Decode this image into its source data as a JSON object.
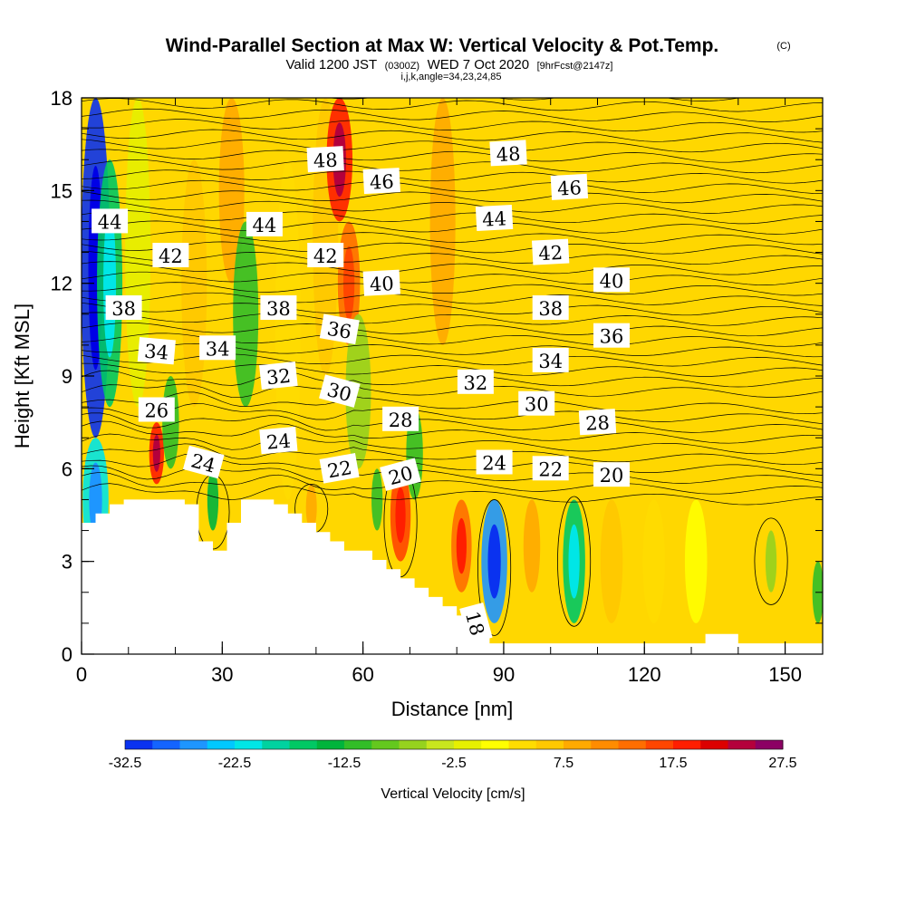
{
  "chart_data": {
    "type": "heatmap",
    "title": "Wind-Parallel Section at Max W: Vertical Velocity & Pot.Temp.",
    "title_mark": "(C)",
    "subtitle_prefix": "Valid 1200 JST",
    "subtitle_utc": "(0300Z)",
    "subtitle_date": "WED 7 Oct 2020",
    "subtitle_fcst": "[9hrFcst@2147z]",
    "subtitle_grid": "i,j,k,angle=34,23,24,85",
    "xlabel": "Distance [nm]",
    "ylabel": "Height [Kft MSL]",
    "xlim": [
      0,
      158
    ],
    "ylim": [
      0,
      18
    ],
    "xticks": [
      "0",
      "30",
      "60",
      "90",
      "120",
      "150"
    ],
    "yticks": [
      "0",
      "3",
      "6",
      "9",
      "12",
      "15",
      "18"
    ],
    "colorbar": {
      "label": "Vertical Velocity [cm/s]",
      "min": -32.5,
      "max": 27.5,
      "step": 2.5,
      "tick_labels": [
        "-32.5",
        "-22.5",
        "-12.5",
        "-2.5",
        "7.5",
        "17.5",
        "27.5"
      ],
      "colors": [
        "#0000e6",
        "#0a32f0",
        "#1464ff",
        "#1e96ff",
        "#00c8ff",
        "#00e6e6",
        "#00d2a0",
        "#00c864",
        "#00b43c",
        "#32be28",
        "#64c81e",
        "#96d21e",
        "#c8e61e",
        "#e6f000",
        "#ffff00",
        "#ffdc00",
        "#ffc800",
        "#ffaa00",
        "#ff8c00",
        "#ff6e00",
        "#ff4600",
        "#ff1e00",
        "#dc0000",
        "#b4003c",
        "#8c0064",
        "#640096"
      ]
    },
    "vertical_velocity_cells": [
      {
        "x": 3,
        "y": [
          7,
          18
        ],
        "w": -30
      },
      {
        "x": 3,
        "y": [
          3,
          7
        ],
        "w": -20
      },
      {
        "x": 6,
        "y": [
          8,
          16
        ],
        "w": -15
      },
      {
        "x": 12,
        "y": [
          8,
          18
        ],
        "w": 2
      },
      {
        "x": 16,
        "y": [
          5.5,
          7.5
        ],
        "w": 22
      },
      {
        "x": 19,
        "y": [
          6,
          9
        ],
        "w": -8
      },
      {
        "x": 24,
        "y": [
          8,
          16
        ],
        "w": 8
      },
      {
        "x": 28,
        "y": [
          4,
          6
        ],
        "w": -12
      },
      {
        "x": 32,
        "y": [
          12,
          18
        ],
        "w": 10
      },
      {
        "x": 35,
        "y": [
          8,
          14
        ],
        "w": -10
      },
      {
        "x": 44,
        "y": [
          5,
          16
        ],
        "w": 5
      },
      {
        "x": 49,
        "y": [
          4,
          5.5
        ],
        "w": 12
      },
      {
        "x": 52,
        "y": [
          9,
          18
        ],
        "w": 8
      },
      {
        "x": 55,
        "y": [
          14,
          18
        ],
        "w": 22
      },
      {
        "x": 57,
        "y": [
          10,
          14
        ],
        "w": 15
      },
      {
        "x": 59,
        "y": [
          6,
          11
        ],
        "w": -5
      },
      {
        "x": 63,
        "y": [
          4,
          6
        ],
        "w": -10
      },
      {
        "x": 68,
        "y": [
          3,
          6
        ],
        "w": 18
      },
      {
        "x": 71,
        "y": [
          5,
          8
        ],
        "w": -8
      },
      {
        "x": 77,
        "y": [
          10,
          18
        ],
        "w": 10
      },
      {
        "x": 81,
        "y": [
          2,
          5
        ],
        "w": 17
      },
      {
        "x": 88,
        "y": [
          1,
          5
        ],
        "w": -25
      },
      {
        "x": 96,
        "y": [
          2,
          5
        ],
        "w": 12
      },
      {
        "x": 105,
        "y": [
          1,
          5
        ],
        "w": -15
      },
      {
        "x": 113,
        "y": [
          1,
          5
        ],
        "w": 8
      },
      {
        "x": 122,
        "y": [
          1,
          5
        ],
        "w": 6
      },
      {
        "x": 131,
        "y": [
          1,
          5
        ],
        "w": 4
      },
      {
        "x": 147,
        "y": [
          2,
          4
        ],
        "w": -5
      },
      {
        "x": 157,
        "y": [
          1,
          3
        ],
        "w": -10
      }
    ],
    "potential_temperature_labels": [
      {
        "text": "48",
        "x": 52,
        "y": 16.0,
        "angle": -3
      },
      {
        "text": "48",
        "x": 91,
        "y": 16.2,
        "angle": -3
      },
      {
        "text": "46",
        "x": 64,
        "y": 15.3,
        "angle": -3
      },
      {
        "text": "46",
        "x": 104,
        "y": 15.1,
        "angle": -3
      },
      {
        "text": "44",
        "x": 6,
        "y": 14.0,
        "angle": 0
      },
      {
        "text": "44",
        "x": 39,
        "y": 13.9,
        "angle": 0
      },
      {
        "text": "44",
        "x": 88,
        "y": 14.1,
        "angle": -3
      },
      {
        "text": "42",
        "x": 19,
        "y": 12.9,
        "angle": 0
      },
      {
        "text": "42",
        "x": 52,
        "y": 12.9,
        "angle": 0
      },
      {
        "text": "42",
        "x": 100,
        "y": 13.0,
        "angle": -3
      },
      {
        "text": "40",
        "x": 64,
        "y": 12.0,
        "angle": -3
      },
      {
        "text": "40",
        "x": 113,
        "y": 12.1,
        "angle": 0
      },
      {
        "text": "38",
        "x": 9,
        "y": 11.2,
        "angle": 0
      },
      {
        "text": "38",
        "x": 42,
        "y": 11.2,
        "angle": 0
      },
      {
        "text": "38",
        "x": 100,
        "y": 11.2,
        "angle": 0
      },
      {
        "text": "36",
        "x": 55,
        "y": 10.5,
        "angle": 10
      },
      {
        "text": "36",
        "x": 113,
        "y": 10.3,
        "angle": 0
      },
      {
        "text": "34",
        "x": 16,
        "y": 9.8,
        "angle": 5
      },
      {
        "text": "34",
        "x": 29,
        "y": 9.9,
        "angle": 0
      },
      {
        "text": "34",
        "x": 100,
        "y": 9.5,
        "angle": 0
      },
      {
        "text": "32",
        "x": 42,
        "y": 9.0,
        "angle": -6
      },
      {
        "text": "32",
        "x": 84,
        "y": 8.8,
        "angle": 0
      },
      {
        "text": "30",
        "x": 55,
        "y": 8.5,
        "angle": 15
      },
      {
        "text": "30",
        "x": 97,
        "y": 8.1,
        "angle": 0
      },
      {
        "text": "28",
        "x": 68,
        "y": 7.6,
        "angle": 0
      },
      {
        "text": "28",
        "x": 110,
        "y": 7.5,
        "angle": -3
      },
      {
        "text": "26",
        "x": 16,
        "y": 7.9,
        "angle": 0
      },
      {
        "text": "24",
        "x": 26,
        "y": 6.2,
        "angle": 15
      },
      {
        "text": "24",
        "x": 42,
        "y": 6.9,
        "angle": -5
      },
      {
        "text": "24",
        "x": 88,
        "y": 6.2,
        "angle": 0
      },
      {
        "text": "22",
        "x": 55,
        "y": 6.0,
        "angle": -10
      },
      {
        "text": "22",
        "x": 100,
        "y": 6.0,
        "angle": 0
      },
      {
        "text": "20",
        "x": 68,
        "y": 5.8,
        "angle": -15
      },
      {
        "text": "20",
        "x": 113,
        "y": 5.8,
        "angle": 0
      },
      {
        "text": "18",
        "x": 84,
        "y": 1.0,
        "angle": 75
      }
    ],
    "terrain": [
      [
        0,
        4.25
      ],
      [
        3,
        4.25
      ],
      [
        3,
        4.55
      ],
      [
        6,
        4.55
      ],
      [
        6,
        4.85
      ],
      [
        9,
        4.85
      ],
      [
        9,
        5.0
      ],
      [
        22,
        5.0
      ],
      [
        22,
        4.85
      ],
      [
        25,
        4.85
      ],
      [
        25,
        3.65
      ],
      [
        28,
        3.65
      ],
      [
        28,
        3.35
      ],
      [
        31,
        3.35
      ],
      [
        31,
        4.25
      ],
      [
        34,
        4.25
      ],
      [
        34,
        5.0
      ],
      [
        41,
        5.0
      ],
      [
        41,
        4.85
      ],
      [
        44,
        4.85
      ],
      [
        44,
        4.55
      ],
      [
        47,
        4.55
      ],
      [
        47,
        4.25
      ],
      [
        50,
        4.25
      ],
      [
        50,
        3.95
      ],
      [
        53,
        3.95
      ],
      [
        53,
        3.65
      ],
      [
        56,
        3.65
      ],
      [
        56,
        3.35
      ],
      [
        62,
        3.35
      ],
      [
        62,
        3.05
      ],
      [
        65,
        3.05
      ],
      [
        65,
        2.75
      ],
      [
        68,
        2.75
      ],
      [
        68,
        2.45
      ],
      [
        71,
        2.45
      ],
      [
        71,
        2.15
      ],
      [
        74,
        2.15
      ],
      [
        74,
        1.85
      ],
      [
        77,
        1.85
      ],
      [
        77,
        1.55
      ],
      [
        80,
        1.55
      ],
      [
        80,
        1.25
      ],
      [
        83,
        1.25
      ],
      [
        83,
        0.95
      ],
      [
        86,
        0.95
      ],
      [
        86,
        0.65
      ],
      [
        87,
        0.65
      ],
      [
        87,
        0.35
      ],
      [
        89,
        0.35
      ],
      [
        89,
        0.35
      ],
      [
        133,
        0.35
      ],
      [
        133,
        0.65
      ],
      [
        140,
        0.65
      ],
      [
        140,
        0.35
      ],
      [
        158,
        0.35
      ]
    ]
  }
}
